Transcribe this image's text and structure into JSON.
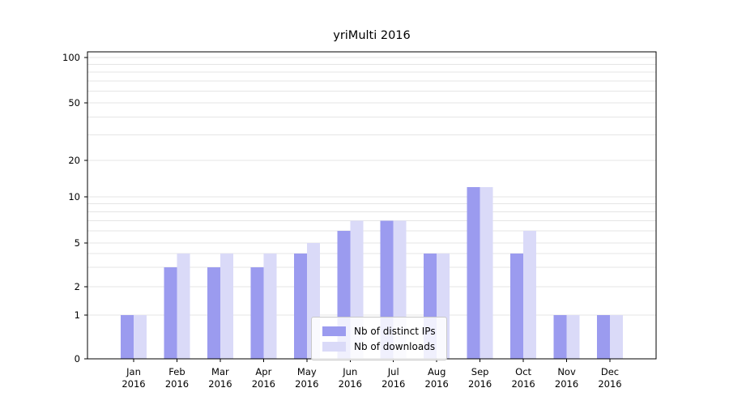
{
  "chart_data": {
    "type": "bar",
    "title": "yriMulti 2016",
    "x_months": [
      "Jan",
      "Feb",
      "Mar",
      "Apr",
      "May",
      "Jun",
      "Jul",
      "Aug",
      "Sep",
      "Oct",
      "Nov",
      "Dec"
    ],
    "x_year": "2016",
    "series": [
      {
        "name": "Nb of distinct IPs",
        "color": "#9b9bef",
        "values": [
          1,
          3,
          3,
          3,
          4,
          6,
          7,
          4,
          12,
          4,
          1,
          1
        ]
      },
      {
        "name": "Nb of downloads",
        "color": "#dadaf8",
        "values": [
          1,
          4,
          4,
          4,
          5,
          7,
          7,
          4,
          12,
          6,
          1,
          1
        ]
      }
    ],
    "yscale": "symlog",
    "yticks": [
      0,
      1,
      2,
      5,
      10,
      20,
      50,
      100
    ],
    "ylim": [
      0,
      110
    ],
    "grid": "horizontal, minor log ticks",
    "grid_color": "#e5e5e5",
    "legend_position": "lower center"
  }
}
